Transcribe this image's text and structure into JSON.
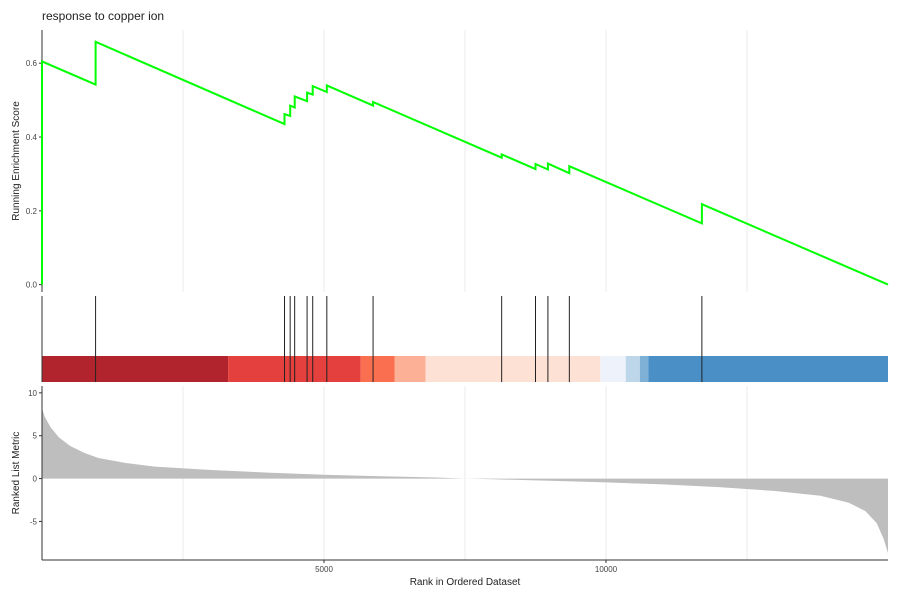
{
  "chart_data": {
    "type": "line",
    "title": "response to copper ion",
    "xlabel": "Rank in Ordered Dataset",
    "xlim": [
      0,
      15000
    ],
    "x_ticks": [
      5000,
      10000
    ],
    "grid": "vertical",
    "running_score": {
      "ylabel": "Running Enrichment Score",
      "ylim": [
        -0.02,
        0.69
      ],
      "y_ticks": [
        0.0,
        0.2,
        0.4,
        0.6
      ],
      "y_tick_labels": [
        "0.0",
        "0.2",
        "0.4",
        "0.6"
      ],
      "color": "#00ff00",
      "points": [
        [
          0,
          0.0
        ],
        [
          0,
          0.605
        ],
        [
          950,
          0.542
        ],
        [
          950,
          0.658
        ],
        [
          4300,
          0.435
        ],
        [
          4300,
          0.462
        ],
        [
          4400,
          0.457
        ],
        [
          4400,
          0.485
        ],
        [
          4480,
          0.48
        ],
        [
          4480,
          0.51
        ],
        [
          4700,
          0.497
        ],
        [
          4700,
          0.52
        ],
        [
          4800,
          0.515
        ],
        [
          4800,
          0.538
        ],
        [
          5050,
          0.522
        ],
        [
          5050,
          0.54
        ],
        [
          5870,
          0.485
        ],
        [
          5870,
          0.495
        ],
        [
          8150,
          0.344
        ],
        [
          8150,
          0.353
        ],
        [
          8750,
          0.313
        ],
        [
          8750,
          0.327
        ],
        [
          8970,
          0.312
        ],
        [
          8970,
          0.328
        ],
        [
          9350,
          0.302
        ],
        [
          9350,
          0.321
        ],
        [
          11700,
          0.166
        ],
        [
          11700,
          0.218
        ],
        [
          15000,
          0.0
        ]
      ]
    },
    "gene_hits": [
      0,
      950,
      4300,
      4400,
      4480,
      4700,
      4800,
      5050,
      5870,
      8150,
      8750,
      8970,
      9350,
      11700
    ],
    "color_band": [
      {
        "start": 0,
        "end": 3300,
        "color": "#b2242d"
      },
      {
        "start": 3300,
        "end": 5650,
        "color": "#e4403d"
      },
      {
        "start": 5650,
        "end": 6250,
        "color": "#fb6f51"
      },
      {
        "start": 6250,
        "end": 6800,
        "color": "#fcb095"
      },
      {
        "start": 6800,
        "end": 9900,
        "color": "#fee1d5"
      },
      {
        "start": 9900,
        "end": 10350,
        "color": "#eef3fb"
      },
      {
        "start": 10350,
        "end": 10600,
        "color": "#bdd6ea"
      },
      {
        "start": 10600,
        "end": 10750,
        "color": "#7fb0d6"
      },
      {
        "start": 10750,
        "end": 15000,
        "color": "#4a90c6"
      }
    ],
    "ranked_metric": {
      "ylabel": "Ranked List Metric",
      "ylim": [
        -9.5,
        10.8
      ],
      "y_ticks": [
        -5,
        0,
        5,
        10
      ],
      "y_tick_labels": [
        "-5",
        "0",
        "5",
        "10"
      ],
      "color": "#bebebe",
      "curve": [
        [
          0,
          8.2
        ],
        [
          50,
          7.2
        ],
        [
          150,
          6.0
        ],
        [
          300,
          4.8
        ],
        [
          500,
          3.8
        ],
        [
          750,
          3.0
        ],
        [
          1000,
          2.4
        ],
        [
          1500,
          1.8
        ],
        [
          2000,
          1.4
        ],
        [
          3000,
          1.0
        ],
        [
          4000,
          0.7
        ],
        [
          5000,
          0.45
        ],
        [
          6000,
          0.28
        ],
        [
          7000,
          0.12
        ],
        [
          7500,
          0.0
        ],
        [
          8000,
          -0.08
        ],
        [
          9000,
          -0.25
        ],
        [
          10000,
          -0.45
        ],
        [
          11000,
          -0.68
        ],
        [
          12000,
          -1.0
        ],
        [
          13000,
          -1.45
        ],
        [
          13800,
          -2.0
        ],
        [
          14300,
          -2.8
        ],
        [
          14600,
          -3.8
        ],
        [
          14800,
          -5.2
        ],
        [
          14920,
          -7.0
        ],
        [
          15000,
          -8.7
        ]
      ]
    }
  }
}
